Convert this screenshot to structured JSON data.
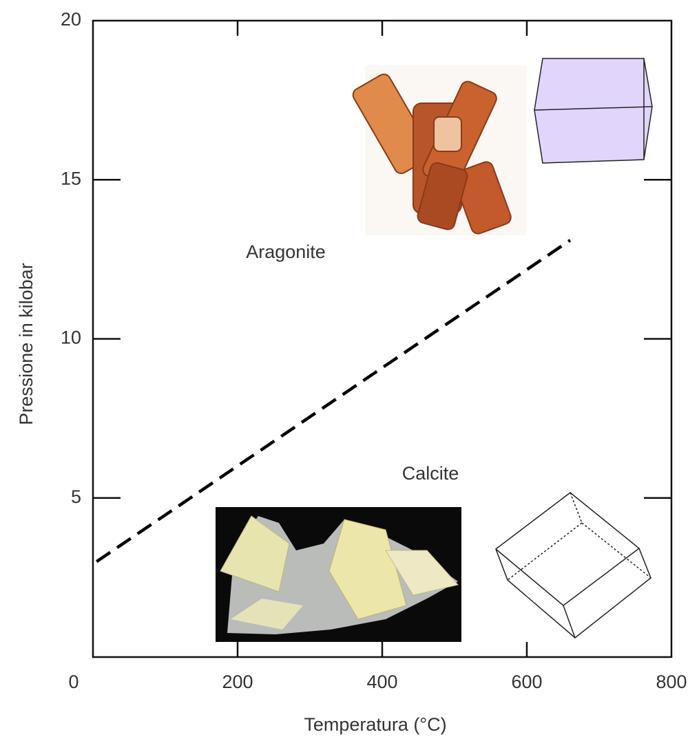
{
  "chart_data": {
    "type": "line",
    "xlabel": "Temperatura (°C)",
    "ylabel": "Pressione in kilobar",
    "x": [
      5,
      660
    ],
    "series": [
      {
        "name": null,
        "color": "#000000",
        "values": [
          3.0,
          13.1
        ]
      }
    ],
    "xlim": [
      0,
      800
    ],
    "xticks": [
      200,
      400,
      600,
      800
    ],
    "ylim": [
      0,
      20
    ],
    "yticks": [
      0,
      5,
      10,
      15,
      20
    ],
    "annotations": [
      "Aragonite",
      "Calcite"
    ]
  }
}
